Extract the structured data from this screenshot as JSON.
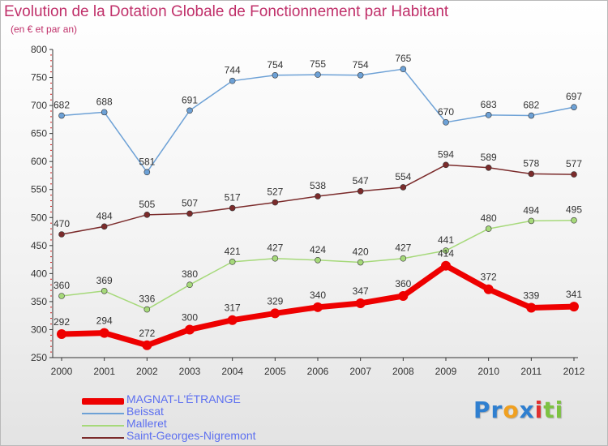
{
  "header": {
    "title": "Evolution de la Dotation Globale de Fonctionnement par Habitant",
    "subtitle": "(en € et par an)"
  },
  "logo": {
    "parts": [
      "Pr",
      "o",
      "x",
      "i",
      "ti"
    ],
    "colors": [
      "#2f7fd0",
      "#f0a020",
      "#2f7fd0",
      "#e03030",
      "#7dc242"
    ]
  },
  "chart_data": {
    "type": "line",
    "title": "Evolution de la Dotation Globale de Fonctionnement par Habitant",
    "subtitle": "(en € et par an)",
    "xlabel": "",
    "ylabel": "",
    "x": [
      "2000",
      "2001",
      "2002",
      "2003",
      "2004",
      "2005",
      "2006",
      "2007",
      "2008",
      "2009",
      "2010",
      "2011",
      "2012"
    ],
    "yticks": [
      250,
      300,
      350,
      400,
      450,
      500,
      550,
      600,
      650,
      700,
      750,
      800
    ],
    "ylim": [
      250,
      800
    ],
    "grid": "none",
    "legend": "bottom-left",
    "series": [
      {
        "name": "Beissat",
        "color": "#6da1d6",
        "values": [
          682,
          688,
          581,
          691,
          744,
          754,
          755,
          754,
          765,
          670,
          683,
          682,
          697
        ]
      },
      {
        "name": "Saint-Georges-Nigremont",
        "color": "#7b2b2b",
        "values": [
          470,
          484,
          505,
          507,
          517,
          527,
          538,
          547,
          554,
          594,
          589,
          578,
          577
        ]
      },
      {
        "name": "Malleret",
        "color": "#a6d97a",
        "values": [
          360,
          369,
          336,
          380,
          421,
          427,
          424,
          420,
          427,
          441,
          480,
          494,
          495
        ]
      },
      {
        "name": "MAGNAT-L'ÉTRANGE",
        "color": "#ee0000",
        "values": [
          292,
          294,
          272,
          300,
          317,
          329,
          340,
          347,
          360,
          414,
          372,
          339,
          341
        ]
      }
    ],
    "legend_order": [
      "MAGNAT-L'ÉTRANGE",
      "Beissat",
      "Malleret",
      "Saint-Georges-Nigremont"
    ]
  }
}
